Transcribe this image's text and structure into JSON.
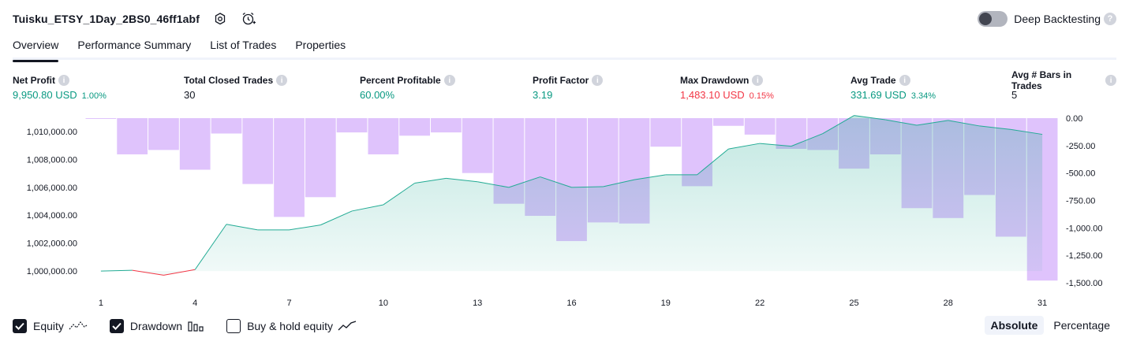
{
  "header": {
    "title": "Tuisku_ETSY_1Day_2BS0_46ff1abf",
    "settings_icon": "settings-gear-icon",
    "alert_icon": "alarm-clock-icon",
    "deep_backtesting_label": "Deep Backtesting",
    "deep_backtesting_on": false,
    "help_text": "?"
  },
  "tabs": [
    {
      "label": "Overview",
      "active": true
    },
    {
      "label": "Performance Summary",
      "active": false
    },
    {
      "label": "List of Trades",
      "active": false
    },
    {
      "label": "Properties",
      "active": false
    }
  ],
  "metrics": [
    {
      "label": "Net Profit",
      "value": "9,950.80 USD",
      "sub": "1.00%",
      "tone": "pos"
    },
    {
      "label": "Total Closed Trades",
      "value": "30",
      "sub": "",
      "tone": "neutral"
    },
    {
      "label": "Percent Profitable",
      "value": "60.00%",
      "sub": "",
      "tone": "pos"
    },
    {
      "label": "Profit Factor",
      "value": "3.19",
      "sub": "",
      "tone": "pos"
    },
    {
      "label": "Max Drawdown",
      "value": "1,483.10 USD",
      "sub": "0.15%",
      "tone": "neg"
    },
    {
      "label": "Avg Trade",
      "value": "331.69 USD",
      "sub": "3.34%",
      "tone": "pos"
    },
    {
      "label": "Avg # Bars in Trades",
      "value": "5",
      "sub": "",
      "tone": "neutral"
    }
  ],
  "metric_info_text": "i",
  "legend": {
    "equity": {
      "label": "Equity",
      "checked": true
    },
    "drawdown": {
      "label": "Drawdown",
      "checked": true
    },
    "buy_hold": {
      "label": "Buy & hold equity",
      "checked": false
    }
  },
  "mode": {
    "absolute_label": "Absolute",
    "percentage_label": "Percentage",
    "active": "Absolute"
  },
  "colors": {
    "equity_up": "#22ab94",
    "equity_down": "#f23645",
    "equity_fill": "#22ab94",
    "drawdown_bar": "#d9b9fb"
  },
  "chart_data": {
    "type": "line",
    "x": [
      1,
      2,
      3,
      4,
      5,
      6,
      7,
      8,
      9,
      10,
      11,
      12,
      13,
      14,
      15,
      16,
      17,
      18,
      19,
      20,
      21,
      22,
      23,
      24,
      25,
      26,
      27,
      28,
      29,
      30,
      31
    ],
    "x_tick_labels": [
      "1",
      "4",
      "7",
      "10",
      "13",
      "16",
      "19",
      "22",
      "25",
      "28",
      "31"
    ],
    "x_tick_values": [
      1,
      4,
      7,
      10,
      13,
      16,
      19,
      22,
      25,
      28,
      31
    ],
    "series": [
      {
        "name": "Equity",
        "axis": "left",
        "values": [
          1000000,
          1000050,
          999700,
          1000100,
          1003350,
          1002950,
          1002950,
          1003300,
          1004300,
          1004750,
          1006300,
          1006650,
          1006400,
          1006000,
          1006750,
          1006000,
          1006050,
          1006550,
          1006900,
          1006900,
          1008750,
          1009150,
          1008950,
          1009850,
          1011150,
          1010850,
          1010450,
          1010800,
          1010400,
          1010150,
          1009800
        ]
      },
      {
        "name": "Drawdown",
        "axis": "right",
        "values": [
          -5,
          -330,
          -290,
          -470,
          -140,
          -600,
          -900,
          -720,
          -130,
          -330,
          -160,
          -130,
          -500,
          -780,
          -890,
          -1120,
          -950,
          -960,
          -260,
          -620,
          -70,
          -150,
          -280,
          -290,
          -460,
          -330,
          -820,
          -910,
          -700,
          -1080,
          -1480
        ]
      }
    ],
    "left_ylim": [
      999100,
      1011300
    ],
    "left_ticks": [
      1000000,
      1002000,
      1004000,
      1006000,
      1008000,
      1010000
    ],
    "left_tick_labels": [
      "1,000,000.00",
      "1,002,000.00",
      "1,004,000.00",
      "1,006,000.00",
      "1,008,000.00",
      "1,010,000.00"
    ],
    "right_ylim": [
      -1500,
      0
    ],
    "right_ticks": [
      0,
      -250,
      -500,
      -750,
      -1000,
      -1250,
      -1500
    ],
    "right_tick_labels": [
      "0.00",
      "-250.00",
      "-500.00",
      "-750.00",
      "-1,000.00",
      "-1,250.00",
      "-1,500.00"
    ],
    "grid": false,
    "legend": "bottom-left"
  }
}
